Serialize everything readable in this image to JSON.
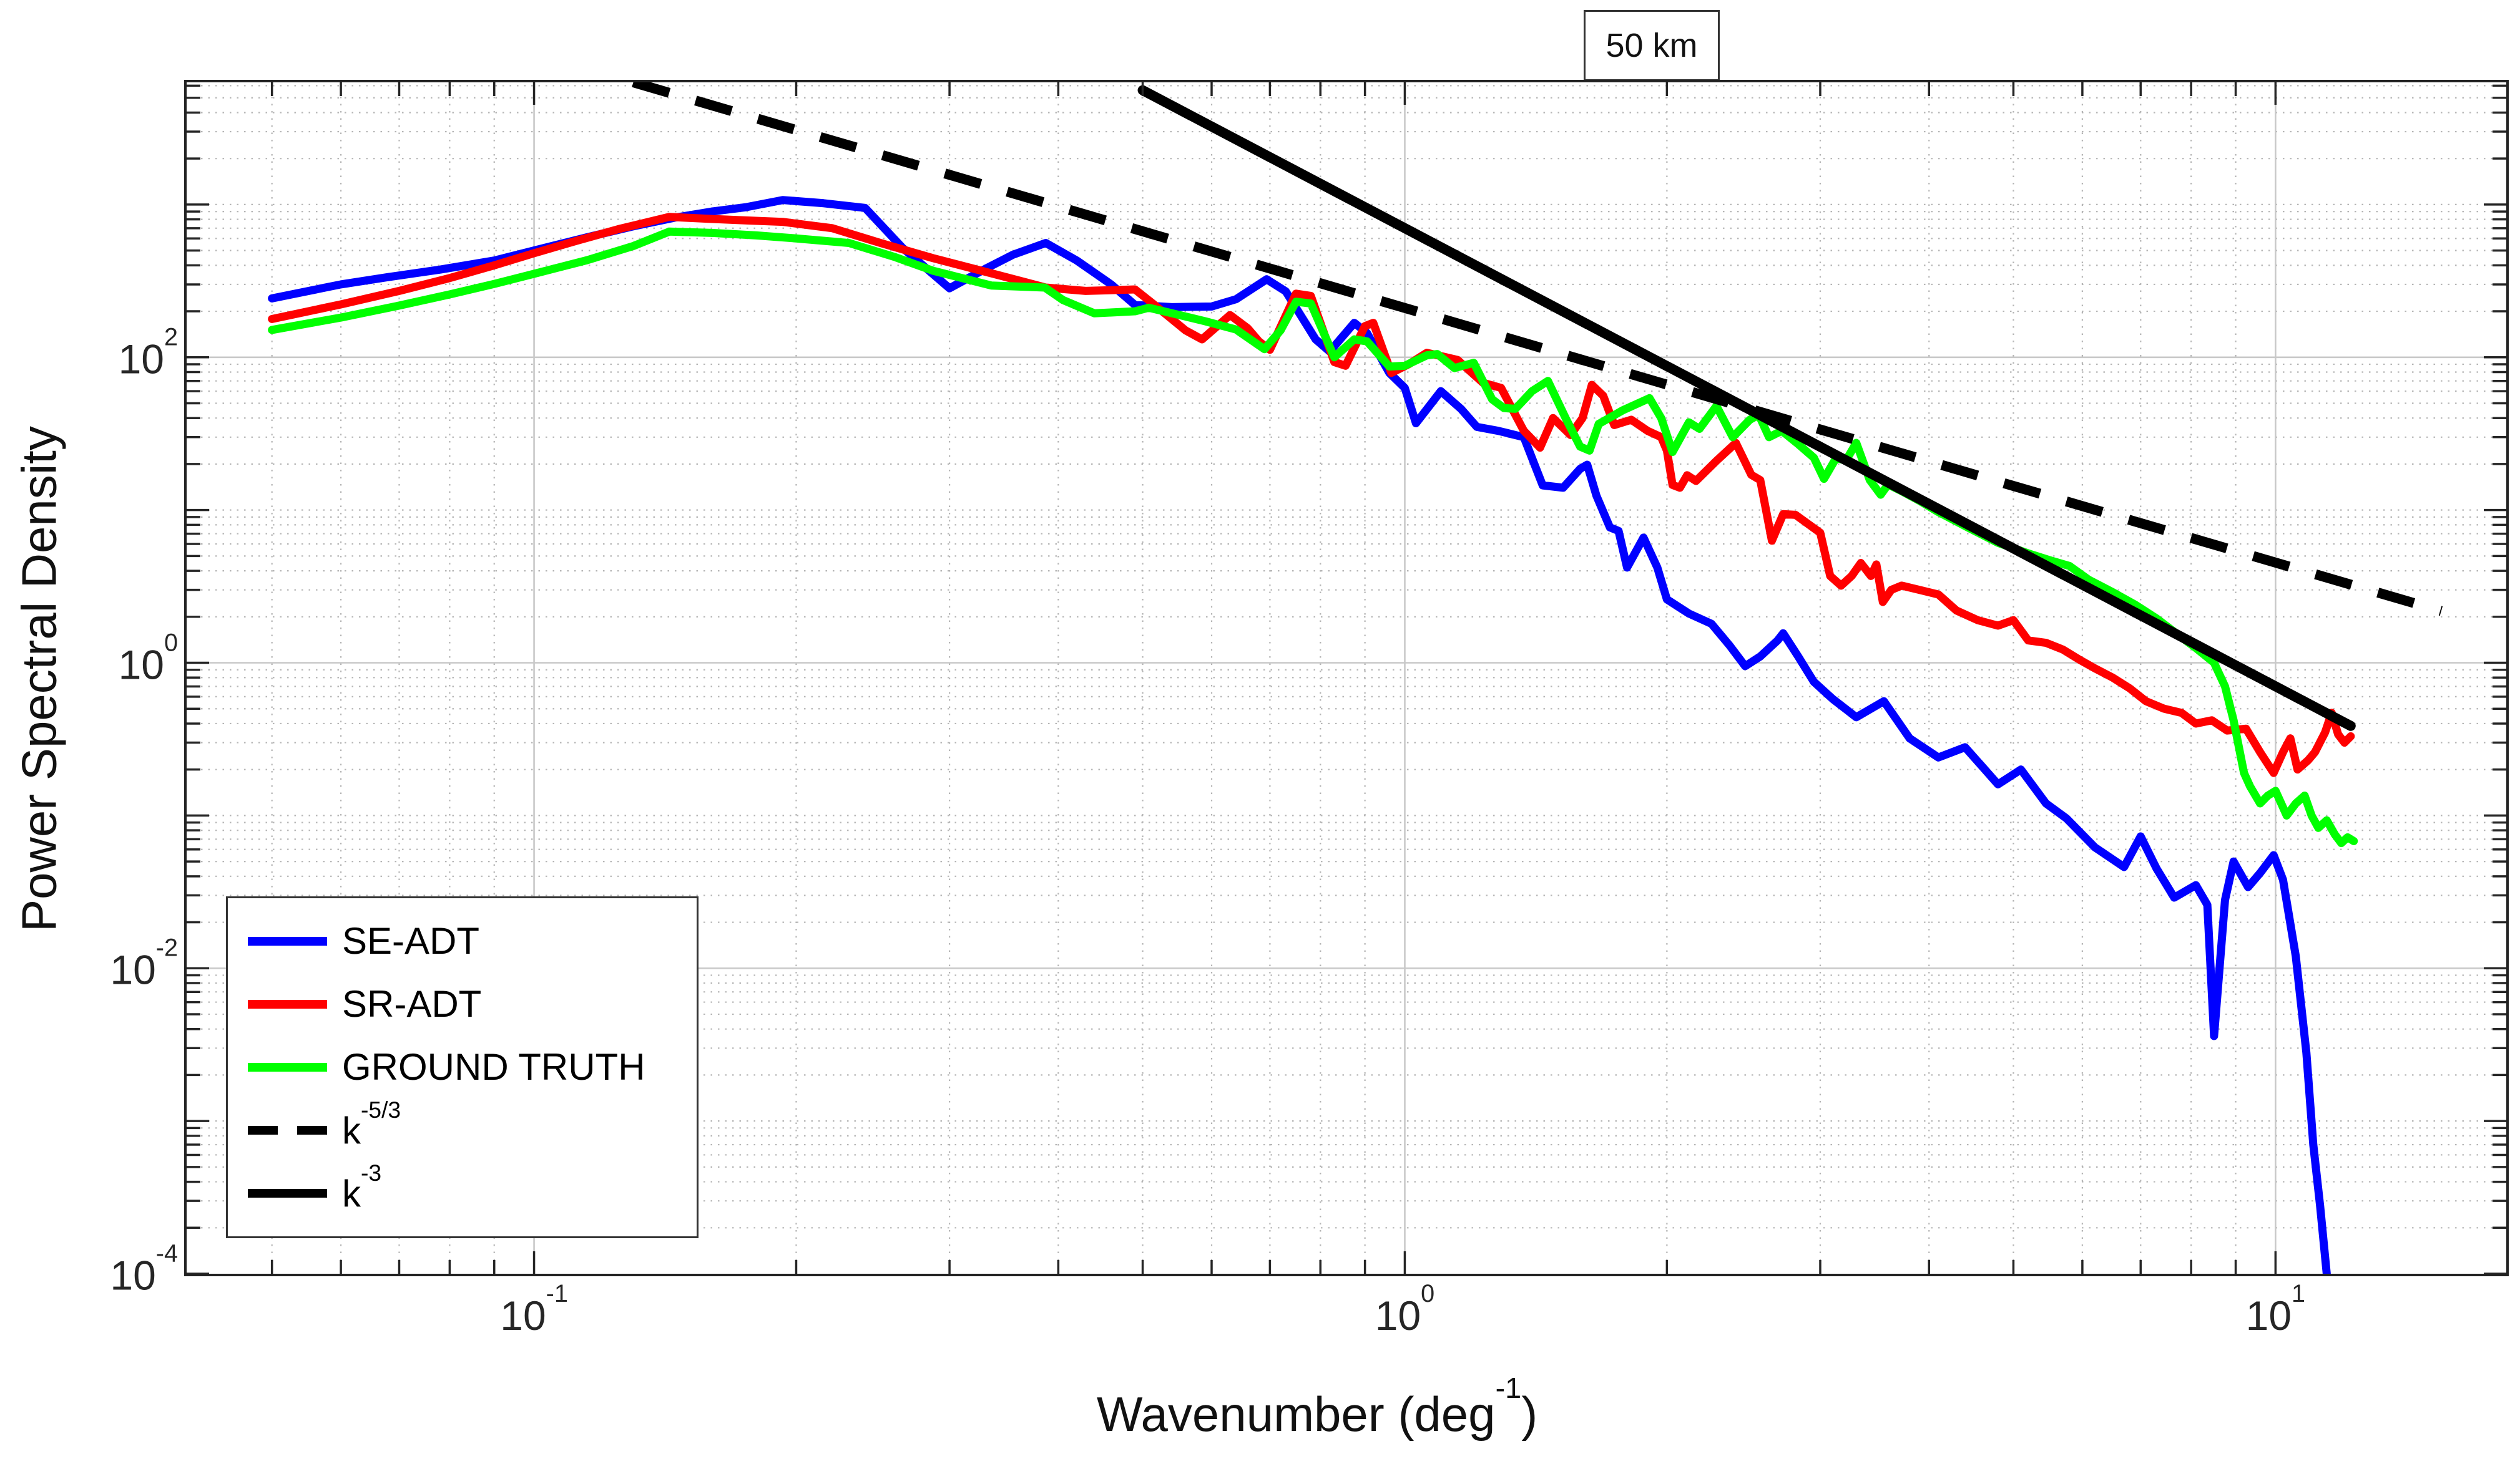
{
  "title_box": "50 km",
  "axes": {
    "ylabel": "Power Spectral Density",
    "xlabel": {
      "pre": "Wavenumber (deg",
      "sup": "-1",
      "post": ")"
    },
    "x_tick_exponents": [
      -1,
      0,
      1
    ],
    "y_tick_exponents": [
      -4,
      -2,
      0,
      2
    ]
  },
  "legend": [
    {
      "label": "SE-ADT",
      "sup": "",
      "color": "#0000ff",
      "dashed": false
    },
    {
      "label": "SR-ADT",
      "sup": "",
      "color": "#ff0000",
      "dashed": false
    },
    {
      "label": "GROUND TRUTH",
      "sup": "",
      "color": "#00ff00",
      "dashed": false
    },
    {
      "label": "k",
      "sup": "-5/3",
      "color": "#000000",
      "dashed": true
    },
    {
      "label": "k",
      "sup": "-3",
      "color": "#000000",
      "dashed": false
    }
  ],
  "chart_data": {
    "type": "line",
    "title": "50 km",
    "xlabel": "Wavenumber (deg^-1)",
    "ylabel": "Power Spectral Density",
    "x_scale": "log",
    "y_scale": "log",
    "xlim_log": [
      -1.399,
      1.265
    ],
    "ylim_log": [
      -4,
      3.8
    ],
    "grid": "major-solid-minor-dotted",
    "legend_position": "lower-left",
    "x_major_gridlines": [
      0.1,
      1,
      10
    ],
    "x_minor_gridlines": [
      0.05,
      0.06,
      0.07,
      0.08,
      0.09,
      0.2,
      0.3,
      0.4,
      0.5,
      0.6,
      0.7,
      0.8,
      0.9,
      2,
      3,
      4,
      5,
      6,
      7,
      8,
      9
    ],
    "y_major_gridlines": [
      100,
      1,
      0.01
    ],
    "y_dotted_decades": [
      1000,
      10,
      0.1,
      0.001
    ],
    "series": [
      {
        "name": "SE-ADT",
        "color": "#0000ff",
        "width": 13,
        "dashed": false,
        "points": [
          [
            0.05,
            243
          ],
          [
            0.06,
            300
          ],
          [
            0.068,
            335
          ],
          [
            0.078,
            375
          ],
          [
            0.09,
            430
          ],
          [
            0.1,
            500
          ],
          [
            0.115,
            610
          ],
          [
            0.13,
            720
          ],
          [
            0.145,
            820
          ],
          [
            0.16,
            900
          ],
          [
            0.175,
            960
          ],
          [
            0.193,
            1070
          ],
          [
            0.215,
            1020
          ],
          [
            0.24,
            950
          ],
          [
            0.265,
            520
          ],
          [
            0.3,
            283
          ],
          [
            0.33,
            380
          ],
          [
            0.355,
            470
          ],
          [
            0.387,
            560
          ],
          [
            0.42,
            430
          ],
          [
            0.46,
            300
          ],
          [
            0.49,
            220
          ],
          [
            0.54,
            213
          ],
          [
            0.6,
            215
          ],
          [
            0.64,
            240
          ],
          [
            0.694,
            324
          ],
          [
            0.73,
            270
          ],
          [
            0.79,
            131
          ],
          [
            0.82,
            109
          ],
          [
            0.875,
            168
          ],
          [
            0.905,
            144
          ],
          [
            0.96,
            79
          ],
          [
            1.0,
            63
          ],
          [
            1.03,
            37
          ],
          [
            1.1,
            60
          ],
          [
            1.16,
            46
          ],
          [
            1.21,
            35
          ],
          [
            1.28,
            33
          ],
          [
            1.37,
            30
          ],
          [
            1.44,
            14.5
          ],
          [
            1.52,
            14
          ],
          [
            1.59,
            18.6
          ],
          [
            1.62,
            19.8
          ],
          [
            1.66,
            12.4
          ],
          [
            1.72,
            7.7
          ],
          [
            1.76,
            7.3
          ],
          [
            1.8,
            4.2
          ],
          [
            1.88,
            6.6
          ],
          [
            1.95,
            4.2
          ],
          [
            2.0,
            2.6
          ],
          [
            2.12,
            2.1
          ],
          [
            2.25,
            1.8
          ],
          [
            2.36,
            1.3
          ],
          [
            2.46,
            0.95
          ],
          [
            2.56,
            1.1
          ],
          [
            2.68,
            1.4
          ],
          [
            2.72,
            1.56
          ],
          [
            2.83,
            1.1
          ],
          [
            2.95,
            0.75
          ],
          [
            3.1,
            0.58
          ],
          [
            3.3,
            0.44
          ],
          [
            3.55,
            0.56
          ],
          [
            3.8,
            0.32
          ],
          [
            4.1,
            0.24
          ],
          [
            4.4,
            0.28
          ],
          [
            4.8,
            0.16
          ],
          [
            5.1,
            0.2
          ],
          [
            5.45,
            0.12
          ],
          [
            5.75,
            0.096
          ],
          [
            6.2,
            0.062
          ],
          [
            6.7,
            0.046
          ],
          [
            7.0,
            0.073
          ],
          [
            7.3,
            0.045
          ],
          [
            7.65,
            0.029
          ],
          [
            8.1,
            0.035
          ],
          [
            8.35,
            0.026
          ],
          [
            8.5,
            0.0036
          ],
          [
            8.75,
            0.028
          ],
          [
            8.95,
            0.05
          ],
          [
            9.3,
            0.034
          ],
          [
            9.6,
            0.042
          ],
          [
            9.95,
            0.055
          ],
          [
            10.2,
            0.038
          ],
          [
            10.55,
            0.012
          ],
          [
            10.85,
            0.0028
          ],
          [
            11.05,
            0.0007
          ],
          [
            11.25,
            0.00028
          ],
          [
            11.45,
            0.0001
          ]
        ]
      },
      {
        "name": "SR-ADT",
        "color": "#ff0000",
        "width": 13,
        "dashed": false,
        "points": [
          [
            0.05,
            178
          ],
          [
            0.06,
            222
          ],
          [
            0.07,
            272
          ],
          [
            0.08,
            330
          ],
          [
            0.09,
            400
          ],
          [
            0.1,
            480
          ],
          [
            0.112,
            580
          ],
          [
            0.125,
            690
          ],
          [
            0.143,
            830
          ],
          [
            0.16,
            805
          ],
          [
            0.177,
            785
          ],
          [
            0.193,
            770
          ],
          [
            0.22,
            700
          ],
          [
            0.25,
            560
          ],
          [
            0.287,
            446
          ],
          [
            0.34,
            347
          ],
          [
            0.387,
            286
          ],
          [
            0.43,
            272
          ],
          [
            0.49,
            278
          ],
          [
            0.515,
            222
          ],
          [
            0.56,
            150
          ],
          [
            0.585,
            131
          ],
          [
            0.63,
            189
          ],
          [
            0.66,
            155
          ],
          [
            0.68,
            127
          ],
          [
            0.7,
            112
          ],
          [
            0.75,
            261
          ],
          [
            0.78,
            252
          ],
          [
            0.83,
            93
          ],
          [
            0.855,
            88
          ],
          [
            0.9,
            160
          ],
          [
            0.92,
            168
          ],
          [
            0.965,
            79
          ],
          [
            1.01,
            90
          ],
          [
            1.06,
            107
          ],
          [
            1.15,
            96
          ],
          [
            1.23,
            68
          ],
          [
            1.29,
            63
          ],
          [
            1.37,
            33
          ],
          [
            1.43,
            25.6
          ],
          [
            1.48,
            40
          ],
          [
            1.55,
            31
          ],
          [
            1.6,
            40
          ],
          [
            1.64,
            66
          ],
          [
            1.69,
            56
          ],
          [
            1.74,
            36
          ],
          [
            1.82,
            39
          ],
          [
            1.9,
            33
          ],
          [
            1.97,
            30
          ],
          [
            2.0,
            24.5
          ],
          [
            2.03,
            14.6
          ],
          [
            2.07,
            14
          ],
          [
            2.11,
            16.9
          ],
          [
            2.16,
            15.5
          ],
          [
            2.28,
            21
          ],
          [
            2.4,
            27.5
          ],
          [
            2.5,
            17
          ],
          [
            2.56,
            15.7
          ],
          [
            2.64,
            6.3
          ],
          [
            2.72,
            9.4
          ],
          [
            2.81,
            9.3
          ],
          [
            3.0,
            7.1
          ],
          [
            3.08,
            3.7
          ],
          [
            3.17,
            3.2
          ],
          [
            3.26,
            3.7
          ],
          [
            3.34,
            4.5
          ],
          [
            3.43,
            3.7
          ],
          [
            3.48,
            4.4
          ],
          [
            3.54,
            2.5
          ],
          [
            3.62,
            3.0
          ],
          [
            3.72,
            3.2
          ],
          [
            3.9,
            3.0
          ],
          [
            4.1,
            2.8
          ],
          [
            4.3,
            2.2
          ],
          [
            4.55,
            1.9
          ],
          [
            4.8,
            1.75
          ],
          [
            5.0,
            1.9
          ],
          [
            5.2,
            1.4
          ],
          [
            5.45,
            1.35
          ],
          [
            5.7,
            1.22
          ],
          [
            5.95,
            1.05
          ],
          [
            6.2,
            0.92
          ],
          [
            6.5,
            0.8
          ],
          [
            6.8,
            0.68
          ],
          [
            7.1,
            0.56
          ],
          [
            7.45,
            0.5
          ],
          [
            7.8,
            0.47
          ],
          [
            8.1,
            0.4
          ],
          [
            8.45,
            0.42
          ],
          [
            8.8,
            0.36
          ],
          [
            9.25,
            0.37
          ],
          [
            9.6,
            0.26
          ],
          [
            9.95,
            0.19
          ],
          [
            10.2,
            0.26
          ],
          [
            10.4,
            0.32
          ],
          [
            10.6,
            0.2
          ],
          [
            10.9,
            0.23
          ],
          [
            11.1,
            0.26
          ],
          [
            11.4,
            0.35
          ],
          [
            11.6,
            0.47
          ],
          [
            11.8,
            0.34
          ],
          [
            12.0,
            0.3
          ],
          [
            12.2,
            0.33
          ]
        ]
      },
      {
        "name": "GROUND TRUTH",
        "color": "#00ff00",
        "width": 13,
        "dashed": false,
        "points": [
          [
            0.05,
            151
          ],
          [
            0.06,
            182
          ],
          [
            0.07,
            218
          ],
          [
            0.08,
            258
          ],
          [
            0.09,
            302
          ],
          [
            0.1,
            352
          ],
          [
            0.115,
            432
          ],
          [
            0.13,
            535
          ],
          [
            0.143,
            665
          ],
          [
            0.16,
            652
          ],
          [
            0.18,
            628
          ],
          [
            0.2,
            600
          ],
          [
            0.23,
            560
          ],
          [
            0.26,
            452
          ],
          [
            0.287,
            369
          ],
          [
            0.335,
            295
          ],
          [
            0.386,
            286
          ],
          [
            0.405,
            237
          ],
          [
            0.425,
            211
          ],
          [
            0.44,
            194
          ],
          [
            0.49,
            200
          ],
          [
            0.508,
            211
          ],
          [
            0.545,
            192
          ],
          [
            0.59,
            172
          ],
          [
            0.64,
            152
          ],
          [
            0.69,
            113
          ],
          [
            0.72,
            150
          ],
          [
            0.75,
            231
          ],
          [
            0.78,
            225
          ],
          [
            0.83,
            100
          ],
          [
            0.875,
            131
          ],
          [
            0.905,
            127
          ],
          [
            0.96,
            87
          ],
          [
            1.0,
            88
          ],
          [
            1.06,
            103
          ],
          [
            1.09,
            105
          ],
          [
            1.14,
            85
          ],
          [
            1.2,
            92
          ],
          [
            1.26,
            53
          ],
          [
            1.3,
            46.5
          ],
          [
            1.34,
            46
          ],
          [
            1.4,
            60
          ],
          [
            1.46,
            70
          ],
          [
            1.53,
            40
          ],
          [
            1.59,
            26
          ],
          [
            1.63,
            24.5
          ],
          [
            1.67,
            36.6
          ],
          [
            1.78,
            45
          ],
          [
            1.91,
            54
          ],
          [
            1.97,
            40
          ],
          [
            2.03,
            24
          ],
          [
            2.12,
            37.5
          ],
          [
            2.18,
            34
          ],
          [
            2.28,
            48
          ],
          [
            2.38,
            30
          ],
          [
            2.49,
            39
          ],
          [
            2.55,
            42
          ],
          [
            2.62,
            30
          ],
          [
            2.71,
            33
          ],
          [
            2.83,
            27
          ],
          [
            2.95,
            22
          ],
          [
            3.03,
            16
          ],
          [
            3.13,
            22
          ],
          [
            3.21,
            21
          ],
          [
            3.3,
            27.5
          ],
          [
            3.42,
            15.7
          ],
          [
            3.52,
            12.6
          ],
          [
            3.59,
            14.7
          ],
          [
            3.72,
            13.3
          ],
          [
            3.9,
            11.5
          ],
          [
            4.1,
            9.7
          ],
          [
            4.45,
            7.6
          ],
          [
            4.8,
            6.1
          ],
          [
            5.2,
            5.2
          ],
          [
            5.5,
            4.7
          ],
          [
            5.8,
            4.3
          ],
          [
            6.1,
            3.5
          ],
          [
            6.5,
            2.9
          ],
          [
            6.9,
            2.4
          ],
          [
            7.3,
            1.95
          ],
          [
            7.7,
            1.55
          ],
          [
            8.1,
            1.25
          ],
          [
            8.5,
            1.0
          ],
          [
            8.75,
            0.7
          ],
          [
            8.95,
            0.42
          ],
          [
            9.2,
            0.19
          ],
          [
            9.35,
            0.155
          ],
          [
            9.6,
            0.12
          ],
          [
            9.8,
            0.135
          ],
          [
            10.0,
            0.145
          ],
          [
            10.3,
            0.1
          ],
          [
            10.55,
            0.12
          ],
          [
            10.8,
            0.135
          ],
          [
            11.0,
            0.1
          ],
          [
            11.2,
            0.083
          ],
          [
            11.45,
            0.093
          ],
          [
            11.7,
            0.075
          ],
          [
            11.9,
            0.066
          ],
          [
            12.1,
            0.072
          ],
          [
            12.3,
            0.068
          ]
        ]
      },
      {
        "name": "k^-5/3",
        "color": "#000000",
        "width": 16,
        "dashed": true,
        "points": [
          [
            0.13,
            6310
          ],
          [
            15.5,
            2.18
          ]
        ]
      },
      {
        "name": "k^-3",
        "color": "#000000",
        "width": 16,
        "dashed": false,
        "points": [
          [
            0.5,
            5600
          ],
          [
            12.2,
            0.386
          ]
        ]
      }
    ]
  }
}
